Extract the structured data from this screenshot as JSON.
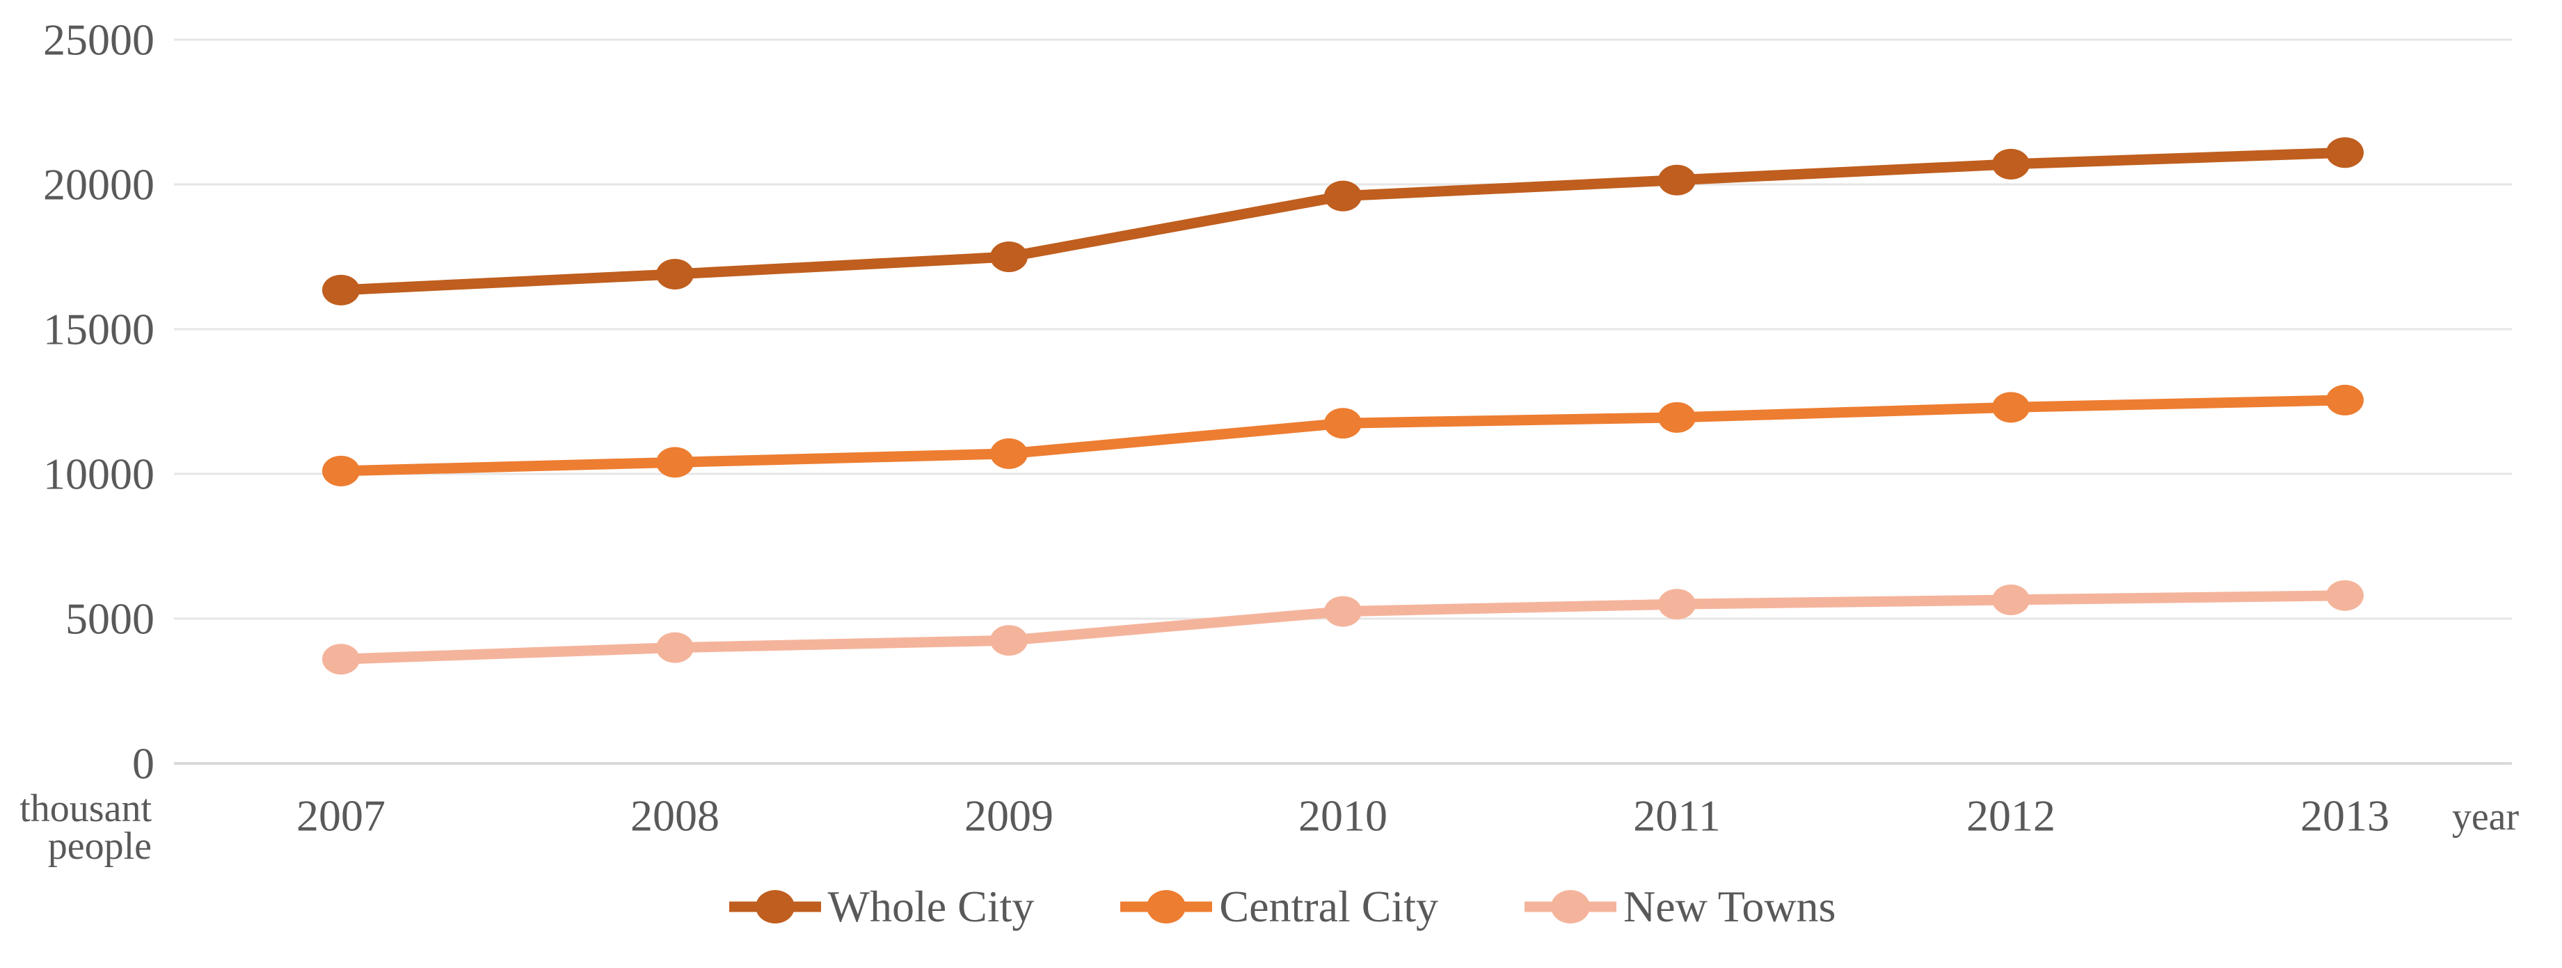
{
  "chart_data": {
    "type": "line",
    "title": "",
    "unit_label_lines": [
      "thousant",
      "people"
    ],
    "x_axis_suffix": "year",
    "categories": [
      "2007",
      "2008",
      "2009",
      "2010",
      "2011",
      "2012",
      "2013"
    ],
    "series": [
      {
        "name": "Whole City",
        "color": "#BF5E1E",
        "values": [
          16350,
          16900,
          17500,
          19600,
          20150,
          20700,
          21100
        ]
      },
      {
        "name": "Central City",
        "color": "#ED7D31",
        "values": [
          10100,
          10400,
          10700,
          11750,
          11950,
          12300,
          12550
        ]
      },
      {
        "name": "New Towns",
        "color": "#F4B49B",
        "values": [
          3600,
          4000,
          4250,
          5250,
          5500,
          5650,
          5800
        ]
      }
    ],
    "y_axis": {
      "min": 0,
      "max": 25000,
      "tick_step": 5000,
      "tick_labels": [
        "0",
        "5000",
        "10000",
        "15000",
        "20000",
        "25000"
      ]
    },
    "grid": true,
    "legend_position": "bottom-center",
    "colors": {
      "gridline": "#E6E6E6",
      "axis_line": "#D9D9D9",
      "text": "#595959"
    }
  }
}
